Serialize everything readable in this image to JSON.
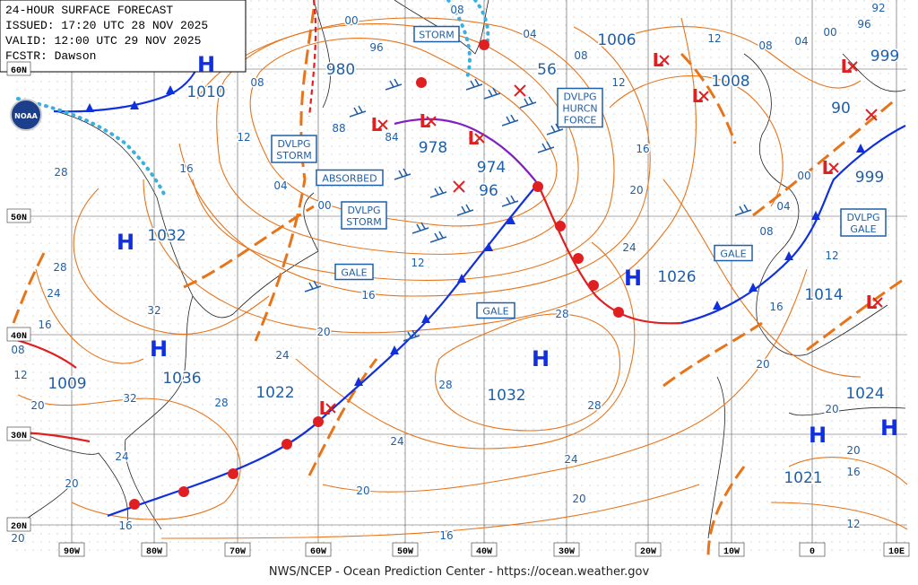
{
  "header": {
    "lines": [
      "24-HOUR SURFACE FORECAST",
      "ISSUED: 17:20 UTC 28 NOV 2025",
      "VALID: 12:00 UTC 29 NOV 2025",
      "FCSTR: Dawson"
    ]
  },
  "logo": "NOAA",
  "footer": "NWS/NCEP - Ocean Prediction Center - https://ocean.weather.gov",
  "latitude_labels": [
    "60N",
    "50N",
    "40N",
    "30N",
    "20N"
  ],
  "longitude_labels": [
    "90W",
    "80W",
    "70W",
    "60W",
    "50W",
    "40W",
    "30W",
    "20W",
    "10W",
    "0",
    "10E"
  ],
  "high_centers": [
    "H",
    "H",
    "H",
    "H",
    "H",
    "H",
    "H"
  ],
  "low_centers": [
    "L",
    "L",
    "L",
    "L",
    "L",
    "L",
    "L",
    "L",
    "L"
  ],
  "pressure_labels": [
    "1010",
    "980",
    "978",
    "974",
    "96",
    "1006",
    "56",
    "1008",
    "999",
    "90",
    "999",
    "1032",
    "1026",
    "1014",
    "1036",
    "1022",
    "1009",
    "1032",
    "1024",
    "1021"
  ],
  "isobar_labels": [
    "00",
    "96",
    "08",
    "04",
    "08",
    "12",
    "12",
    "08",
    "04",
    "00",
    "96",
    "92",
    "08",
    "12",
    "16",
    "28",
    "88",
    "84",
    "04",
    "00",
    "12",
    "16",
    "20",
    "24",
    "32",
    "28",
    "24",
    "16",
    "08",
    "12",
    "20",
    "32",
    "28",
    "28",
    "28",
    "28",
    "24",
    "24",
    "20",
    "20",
    "24",
    "20",
    "16",
    "16",
    "20",
    "16",
    "20",
    "24",
    "16",
    "20",
    "20",
    "20",
    "16",
    "12",
    "08",
    "04",
    "00",
    "12"
  ],
  "warning_boxes": [
    [
      "STORM"
    ],
    [
      "DVLPG",
      "STORM"
    ],
    [
      "ABSORBED"
    ],
    [
      "DVLPG",
      "STORM"
    ],
    [
      "GALE"
    ],
    [
      "GALE"
    ],
    [
      "DVLPG",
      "HURCN",
      "FORCE"
    ],
    [
      "GALE"
    ],
    [
      "DVLPG",
      "GALE"
    ]
  ]
}
